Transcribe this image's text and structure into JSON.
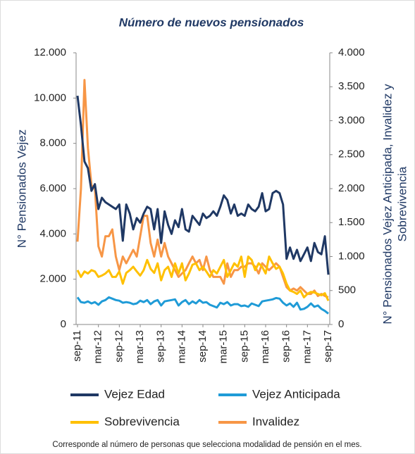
{
  "chart_data": {
    "type": "line",
    "title": "Número de nuevos pensionados",
    "y_label": "N° Pensionados Vejez",
    "y2_label": [
      "N° Pensionados Vejez Anticipada, Invalidez y",
      "Sobrevivencia"
    ],
    "note": "Corresponde al número de personas que selecciona modalidad de pensión en el mes.",
    "categories": [
      "sep-11",
      null,
      null,
      null,
      null,
      null,
      "mar-12",
      null,
      null,
      null,
      null,
      null,
      "sep-12",
      null,
      null,
      null,
      null,
      null,
      "mar-13",
      null,
      null,
      null,
      null,
      null,
      "sep-13",
      null,
      null,
      null,
      null,
      null,
      "mar-14",
      null,
      null,
      null,
      null,
      null,
      "sep-14",
      null,
      null,
      null,
      null,
      null,
      "mar-15",
      null,
      null,
      null,
      null,
      null,
      "sep-15",
      null,
      null,
      null,
      null,
      null,
      "mar-16",
      null,
      null,
      null,
      null,
      null,
      "sep-16",
      null,
      null,
      null,
      null,
      null,
      "mar-17",
      null,
      null,
      null,
      null,
      null,
      "sep-17"
    ],
    "ylim": [
      0,
      12000
    ],
    "yticks": [
      0,
      {
        "value": 2000,
        "label": "2.000"
      },
      {
        "value": 4000,
        "label": "4.000"
      },
      {
        "value": 6000,
        "label": "6.000"
      },
      {
        "value": 8000,
        "label": "8.000"
      },
      {
        "value": 10000,
        "label": "10.000"
      },
      {
        "value": 12000,
        "label": "12.000"
      }
    ],
    "y2lim": [
      0,
      4000
    ],
    "y2ticks": [
      0,
      500,
      {
        "value": 1000,
        "label": "1.000"
      },
      {
        "value": 1500,
        "label": "1.500"
      },
      {
        "value": 2000,
        "label": "2.000"
      },
      {
        "value": 2500,
        "label": "2.500"
      },
      {
        "value": 3000,
        "label": "3.000"
      },
      {
        "value": 3500,
        "label": "3.500"
      },
      {
        "value": 4000,
        "label": "4.000"
      }
    ],
    "series": [
      {
        "name": "Vejez Edad",
        "color": "#1f3864",
        "axis": "y",
        "values": [
          10100,
          8800,
          7200,
          6900,
          5900,
          6200,
          5100,
          5600,
          5400,
          5300,
          5200,
          5100,
          5300,
          3700,
          5300,
          4900,
          4200,
          4700,
          4500,
          4900,
          5200,
          5100,
          4200,
          5100,
          3600,
          5000,
          4400,
          4000,
          4600,
          4300,
          5100,
          4200,
          4100,
          4800,
          4600,
          4400,
          4900,
          4700,
          4800,
          5000,
          4800,
          5200,
          5700,
          5500,
          4900,
          5300,
          4800,
          4900,
          4800,
          5300,
          5100,
          5000,
          5200,
          5800,
          5000,
          5100,
          5800,
          5900,
          5800,
          5300,
          2900,
          3400,
          2900,
          3300,
          2800,
          3100,
          3400,
          2800,
          3600,
          3200,
          3100,
          3900,
          2200
        ]
      },
      {
        "name": "Vejez Anticipada",
        "color": "#1f9bd7",
        "axis": "y2",
        "values": [
          400,
          330,
          320,
          340,
          310,
          330,
          290,
          340,
          360,
          400,
          380,
          360,
          350,
          320,
          330,
          320,
          300,
          310,
          350,
          330,
          360,
          300,
          340,
          360,
          280,
          340,
          350,
          360,
          370,
          280,
          330,
          360,
          300,
          340,
          310,
          360,
          320,
          330,
          290,
          270,
          250,
          320,
          300,
          330,
          280,
          300,
          300,
          270,
          280,
          260,
          310,
          290,
          270,
          340,
          350,
          360,
          370,
          390,
          380,
          320,
          280,
          310,
          260,
          320,
          220,
          230,
          260,
          310,
          260,
          280,
          230,
          200,
          160
        ]
      },
      {
        "name": "Sobrevivencia",
        "color": "#ffc000",
        "axis": "y2",
        "values": [
          800,
          700,
          780,
          750,
          800,
          780,
          700,
          720,
          750,
          800,
          700,
          700,
          780,
          600,
          760,
          800,
          850,
          780,
          720,
          800,
          950,
          820,
          760,
          900,
          650,
          800,
          850,
          700,
          900,
          750,
          900,
          650,
          750,
          880,
          900,
          800,
          850,
          780,
          700,
          800,
          750,
          850,
          950,
          700,
          800,
          900,
          850,
          1000,
          700,
          1000,
          950,
          800,
          900,
          850,
          750,
          1000,
          900,
          820,
          850,
          750,
          600,
          500,
          480,
          450,
          500,
          400,
          450,
          480,
          470,
          450,
          430,
          460,
          350
        ]
      },
      {
        "name": "Invalidez",
        "color": "#f79646",
        "axis": "y2",
        "values": [
          1220,
          2000,
          3600,
          2600,
          2050,
          2000,
          1150,
          1000,
          1300,
          1300,
          1400,
          1000,
          800,
          1000,
          900,
          1000,
          1100,
          1000,
          1300,
          1600,
          1600,
          1200,
          1000,
          1250,
          1000,
          1200,
          1000,
          900,
          800,
          700,
          750,
          800,
          900,
          1000,
          900,
          950,
          800,
          1000,
          800,
          700,
          700,
          700,
          600,
          900,
          700,
          800,
          800,
          850,
          850,
          900,
          900,
          850,
          750,
          900,
          850,
          800,
          850,
          900,
          850,
          700,
          550,
          500,
          530,
          500,
          550,
          500,
          450,
          450,
          500,
          420,
          450,
          420,
          400
        ]
      }
    ]
  }
}
